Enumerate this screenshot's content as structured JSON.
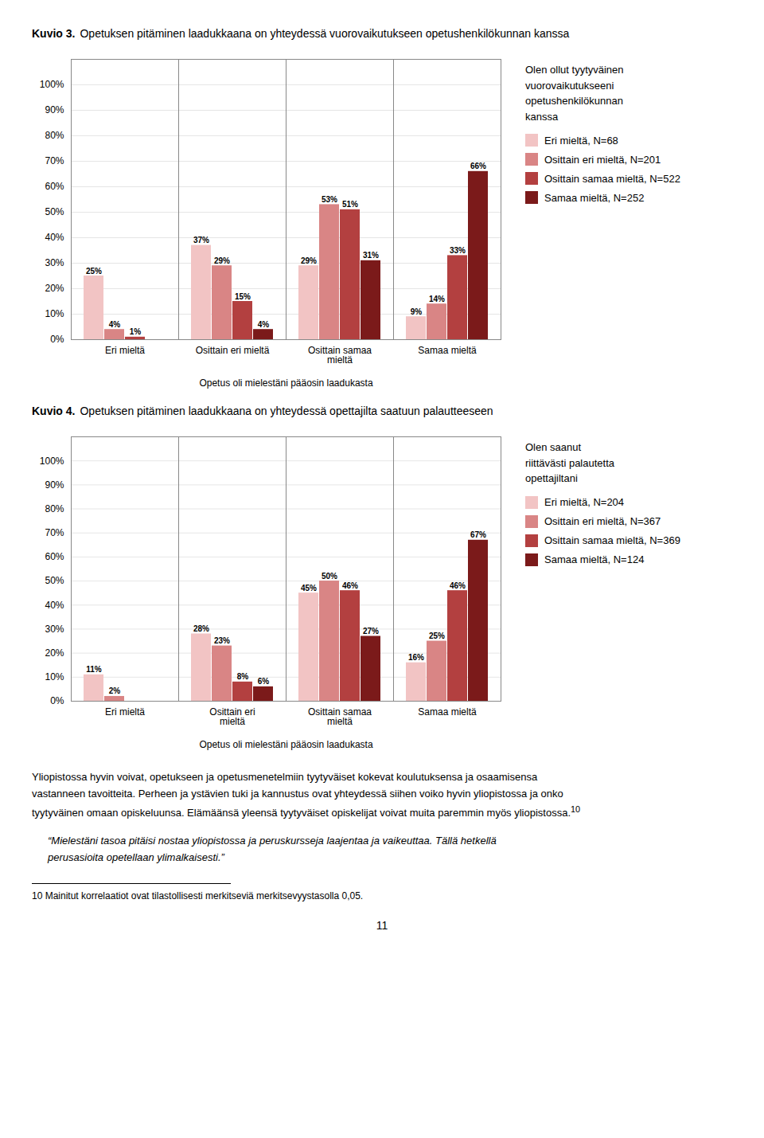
{
  "chart_data": [
    {
      "type": "bar",
      "title": "Kuvio 3.",
      "subtitle": "Opetuksen pitäminen laadukkaana on yhteydessä vuorovaikutukseen opetushenkilökunnan kanssa",
      "xlabel": "Opetus oli mielestäni pääosin laadukasta",
      "categories": [
        "Eri mieltä",
        "Osittain eri mieltä",
        "Osittain samaa\nmieltä",
        "Samaa mieltä"
      ],
      "legend_title": "Olen ollut tyytyväinen\nvuorovaikutukseeni\nopetushenkilökunnan\nkanssa",
      "legend": "right",
      "series": [
        {
          "name": "Eri mieltä, N=68",
          "color": "#f2c4c4",
          "values": [
            25,
            37,
            29,
            9
          ],
          "value_labels": [
            "25%",
            "37%",
            "29%",
            "9%"
          ]
        },
        {
          "name": "Osittain eri mieltä, N=201",
          "color": "#d98585",
          "values": [
            4,
            29,
            53,
            14
          ],
          "value_labels": [
            "4%",
            "29%",
            "53%",
            "14%"
          ]
        },
        {
          "name": "Osittain samaa mieltä, N=522",
          "color": "#b34040",
          "values": [
            1,
            15,
            51,
            33
          ],
          "value_labels": [
            "1%",
            "15%",
            "51%",
            "33%"
          ]
        },
        {
          "name": "Samaa mieltä, N=252",
          "color": "#7b1a1a",
          "values": [
            0,
            4,
            31,
            66
          ],
          "value_labels": [
            null,
            "4%",
            "31%",
            "66%"
          ]
        }
      ],
      "ylim": [
        0,
        110
      ],
      "yticks": [
        {
          "value": 0,
          "label": "0%"
        },
        {
          "value": 10,
          "label": "10%"
        },
        {
          "value": 20,
          "label": "20%"
        },
        {
          "value": 30,
          "label": "30%"
        },
        {
          "value": 40,
          "label": "40%"
        },
        {
          "value": 50,
          "label": "50%"
        },
        {
          "value": 60,
          "label": "60%"
        },
        {
          "value": 70,
          "label": "70%"
        },
        {
          "value": 80,
          "label": "80%"
        },
        {
          "value": 90,
          "label": "90%"
        },
        {
          "value": 100,
          "label": "100%"
        }
      ],
      "grid": true,
      "data_labels": true
    },
    {
      "type": "bar",
      "title": "Kuvio 4.",
      "subtitle": "Opetuksen pitäminen laadukkaana on yhteydessä opettajilta saatuun palautteeseen",
      "xlabel": "Opetus oli mielestäni pääosin laadukasta",
      "categories": [
        "Eri mieltä",
        "Osittain eri\nmieltä",
        "Osittain samaa\nmieltä",
        "Samaa mieltä"
      ],
      "legend_title": "Olen saanut\nriittävästi palautetta\nopettajiltani",
      "legend": "right",
      "series": [
        {
          "name": "Eri mieltä, N=204",
          "color": "#f2c4c4",
          "values": [
            11,
            28,
            45,
            16
          ],
          "value_labels": [
            "11%",
            "28%",
            "45%",
            "16%"
          ]
        },
        {
          "name": "Osittain eri mieltä, N=367",
          "color": "#d98585",
          "values": [
            2,
            23,
            50,
            25
          ],
          "value_labels": [
            "2%",
            "23%",
            "50%",
            "25%"
          ]
        },
        {
          "name": "Osittain samaa mieltä, N=369",
          "color": "#b34040",
          "values": [
            0,
            8,
            46,
            46
          ],
          "value_labels": [
            null,
            "8%",
            "46%",
            "46%"
          ]
        },
        {
          "name": "Samaa mieltä, N=124",
          "color": "#7b1a1a",
          "values": [
            0,
            6,
            27,
            67
          ],
          "value_labels": [
            null,
            "6%",
            "27%",
            "67%"
          ]
        }
      ],
      "ylim": [
        0,
        110
      ],
      "yticks": [
        {
          "value": 0,
          "label": "0%"
        },
        {
          "value": 10,
          "label": "10%"
        },
        {
          "value": 20,
          "label": "20%"
        },
        {
          "value": 30,
          "label": "30%"
        },
        {
          "value": 40,
          "label": "40%"
        },
        {
          "value": 50,
          "label": "50%"
        },
        {
          "value": 60,
          "label": "60%"
        },
        {
          "value": 70,
          "label": "70%"
        },
        {
          "value": 80,
          "label": "80%"
        },
        {
          "value": 90,
          "label": "90%"
        },
        {
          "value": 100,
          "label": "100%"
        }
      ],
      "grid": true,
      "data_labels": true
    }
  ],
  "annotations": [
    "Yliopistossa hyvin voivat, opetukseen ja opetusmenetelmiin tyytyväiset kokevat koulutuksensa ja osaamisensa",
    "vastanneen tavoitteita. Perheen ja ystävien tuki ja kannustus ovat yhteydessä siihen voiko hyvin yliopistossa ja onko",
    "tyytyväinen omaan opiskeluunsa. Elämäänsä yleensä tyytyväiset opiskelijat voivat muita paremmin myös yliopistossa.",
    "10",
    "“Mielestäni tasoa pitäisi nostaa yliopistossa ja peruskursseja laajentaa ja vaikeuttaa. Tällä hetkellä",
    "perusasioita opetellaan ylimalkaisesti.”",
    "10 Mainitut korrelaatiot ovat tilastollisesti merkitseviä merkitsevyystasolla 0,05.",
    "11"
  ]
}
